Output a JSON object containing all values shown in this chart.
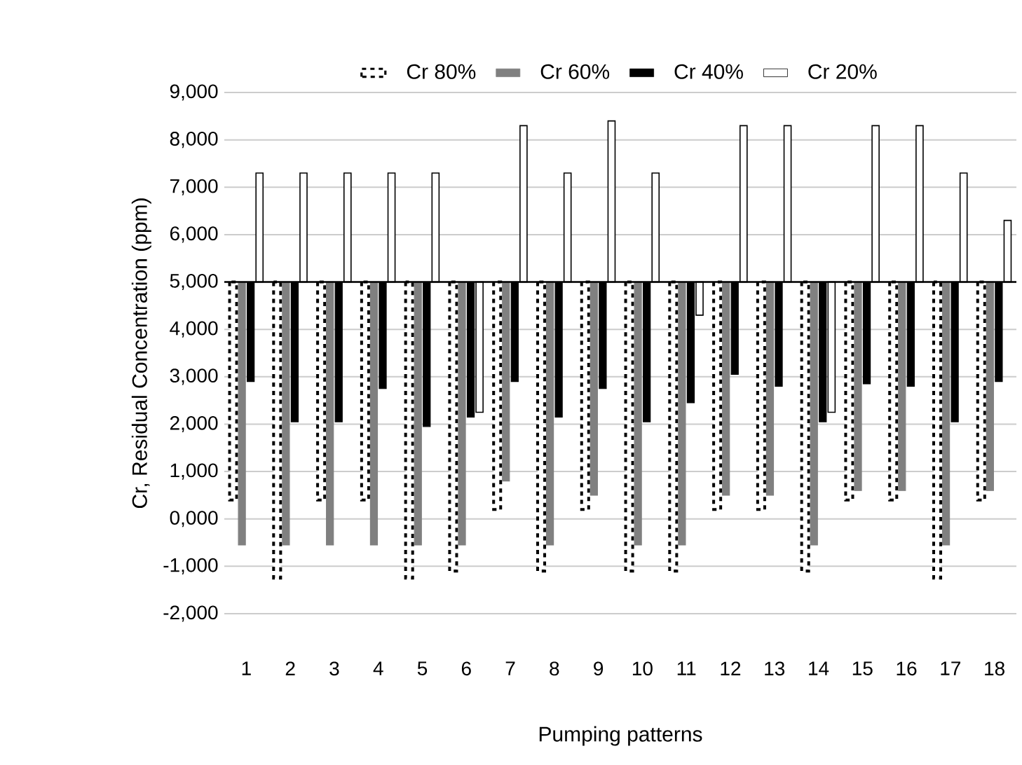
{
  "chart_data": {
    "type": "bar",
    "xlabel": "Pumping patterns",
    "ylabel": "Cr, Residual Concentration (ppm)",
    "categories": [
      "1",
      "2",
      "3",
      "4",
      "5",
      "6",
      "7",
      "8",
      "9",
      "10",
      "11",
      "12",
      "13",
      "14",
      "15",
      "16",
      "17",
      "18"
    ],
    "series": [
      {
        "name": "Cr 80%",
        "color": "#000000",
        "line_style": "dashed",
        "base": [
          5000,
          5000,
          5000,
          5000,
          5000,
          5000,
          5000,
          5000,
          5000,
          5000,
          5000,
          5000,
          5000,
          5000,
          5000,
          5000,
          5000,
          5000
        ],
        "values": [
          -4600,
          -6250,
          -4600,
          -4600,
          -6250,
          -6100,
          -4800,
          -6100,
          -4800,
          -6100,
          -6100,
          -4800,
          -4800,
          -6100,
          -4600,
          -4600,
          -6250,
          -4600
        ]
      },
      {
        "name": "Cr 60%",
        "color": "#808080",
        "base": [
          5000,
          5000,
          5000,
          5000,
          5000,
          5000,
          5000,
          5000,
          5000,
          5000,
          5000,
          5000,
          5000,
          5000,
          5000,
          5000,
          5000,
          5000
        ],
        "values": [
          -5550,
          -5550,
          -5550,
          -5550,
          -5550,
          -5550,
          -4200,
          -5550,
          -4500,
          -5550,
          -5550,
          -4500,
          -4500,
          -5550,
          -4400,
          -4400,
          -5550,
          -4400
        ]
      },
      {
        "name": "Cr 40%",
        "color": "#000000",
        "base": [
          5000,
          5000,
          5000,
          5000,
          5000,
          5000,
          5000,
          5000,
          5000,
          5000,
          5000,
          5000,
          5000,
          5000,
          5000,
          5000,
          5000,
          5000
        ],
        "values": [
          -2100,
          -2950,
          -2950,
          -2250,
          -3050,
          -2850,
          -2100,
          -2850,
          -2250,
          -2950,
          -2550,
          -1950,
          -2200,
          -2950,
          -2150,
          -2200,
          -2950,
          -2100
        ]
      },
      {
        "name": "Cr 20%",
        "color": "#ffffff",
        "base": [
          5000,
          5000,
          5000,
          5000,
          5000,
          5000,
          5000,
          5000,
          5000,
          5000,
          5000,
          5000,
          5000,
          5000,
          5000,
          5000,
          5000,
          5000
        ],
        "values": [
          2300,
          2300,
          2300,
          2300,
          2300,
          -2750,
          3300,
          2300,
          3400,
          2300,
          -700,
          3300,
          3300,
          -2750,
          3300,
          3300,
          2300,
          1300
        ]
      }
    ],
    "ylim": [
      -2000,
      9000
    ],
    "yticks": [
      {
        "value": -2000,
        "label": "-2,000"
      },
      {
        "value": -1000,
        "label": "-1,000"
      },
      {
        "value": 0,
        "label": "0,000"
      },
      {
        "value": 1000,
        "label": "1,000"
      },
      {
        "value": 2000,
        "label": "2,000"
      },
      {
        "value": 3000,
        "label": "3,000"
      },
      {
        "value": 4000,
        "label": "4,000"
      },
      {
        "value": 5000,
        "label": "5,000"
      },
      {
        "value": 6000,
        "label": "6,000"
      },
      {
        "value": 7000,
        "label": "7,000"
      },
      {
        "value": 8000,
        "label": "8,000"
      },
      {
        "value": 9000,
        "label": "9,000"
      }
    ],
    "ref_lines": [
      {
        "axis": "y",
        "value": 5000,
        "color": "#000000"
      }
    ],
    "grid": "y",
    "legend": "top"
  }
}
